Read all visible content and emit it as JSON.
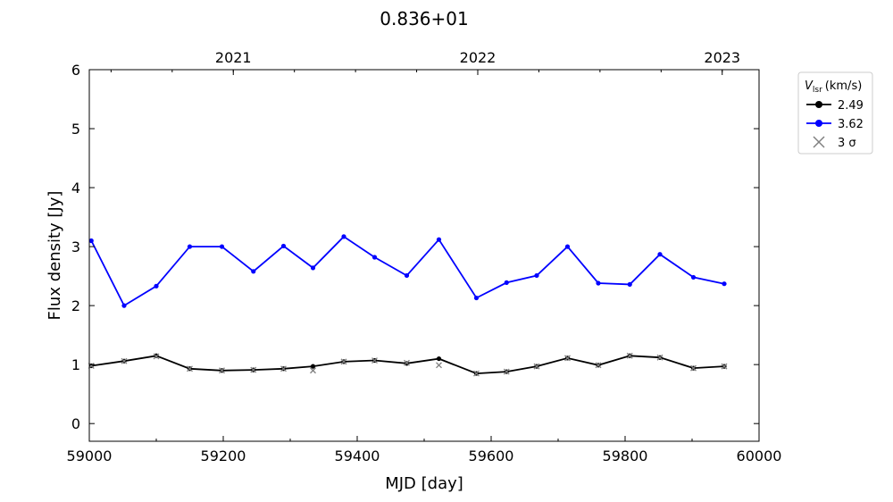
{
  "chart_data": {
    "type": "line",
    "title": "0.836+01",
    "xlabel": "MJD [day]",
    "ylabel": "Flux density [Jy]",
    "xlim": [
      59000,
      60000
    ],
    "ylim": [
      -0.3,
      6
    ],
    "xticks": [
      59000,
      59200,
      59400,
      59600,
      59800,
      60000
    ],
    "yticks": [
      0,
      1,
      2,
      3,
      4,
      5,
      6
    ],
    "top_axis": {
      "ticks": [
        {
          "label": "2021",
          "x": 59215
        },
        {
          "label": "2022",
          "x": 59580
        },
        {
          "label": "2023",
          "x": 59945
        }
      ]
    },
    "legend": {
      "title_main": "V",
      "title_sub": "lsr",
      "title_unit": "(km/s)",
      "placement": "outside-right-top",
      "entries": [
        {
          "label": "2.49",
          "color": "#000000",
          "kind": "line"
        },
        {
          "label": "3.62",
          "color": "#0000ff",
          "kind": "line"
        },
        {
          "label": "3 σ",
          "color": "#808080",
          "kind": "cross"
        }
      ]
    },
    "series": [
      {
        "name": "2.49",
        "color": "#000000",
        "x": [
          59003,
          59052,
          59100,
          59150,
          59198,
          59245,
          59290,
          59334,
          59380,
          59426,
          59474,
          59522,
          59578,
          59623,
          59668,
          59714,
          59760,
          59807,
          59852,
          59902,
          59948
        ],
        "y": [
          0.98,
          1.06,
          1.15,
          0.93,
          0.9,
          0.91,
          0.93,
          0.97,
          1.05,
          1.07,
          1.02,
          1.1,
          0.85,
          0.88,
          0.97,
          1.11,
          0.99,
          1.15,
          1.12,
          0.94,
          0.97
        ]
      },
      {
        "name": "3.62",
        "color": "#0000ff",
        "x": [
          59003,
          59052,
          59100,
          59150,
          59198,
          59245,
          59290,
          59334,
          59380,
          59426,
          59474,
          59522,
          59578,
          59623,
          59668,
          59714,
          59760,
          59807,
          59852,
          59902,
          59948
        ],
        "y": [
          3.1,
          2.0,
          2.33,
          3.0,
          3.0,
          2.58,
          3.01,
          2.64,
          3.17,
          2.82,
          2.51,
          3.12,
          2.13,
          2.39,
          2.51,
          3.0,
          2.38,
          2.36,
          2.87,
          2.48,
          2.37
        ]
      }
    ],
    "sigma3": {
      "name": "3 σ",
      "color": "#808080",
      "x": [
        59003,
        59052,
        59100,
        59150,
        59198,
        59245,
        59290,
        59334,
        59380,
        59426,
        59474,
        59522,
        59578,
        59623,
        59668,
        59714,
        59760,
        59807,
        59852,
        59902,
        59948
      ],
      "y": [
        0.98,
        1.06,
        1.14,
        0.93,
        0.9,
        0.91,
        0.93,
        0.9,
        1.05,
        1.07,
        1.03,
        0.99,
        0.85,
        0.88,
        0.97,
        1.11,
        0.99,
        1.15,
        1.12,
        0.94,
        0.97
      ]
    }
  }
}
